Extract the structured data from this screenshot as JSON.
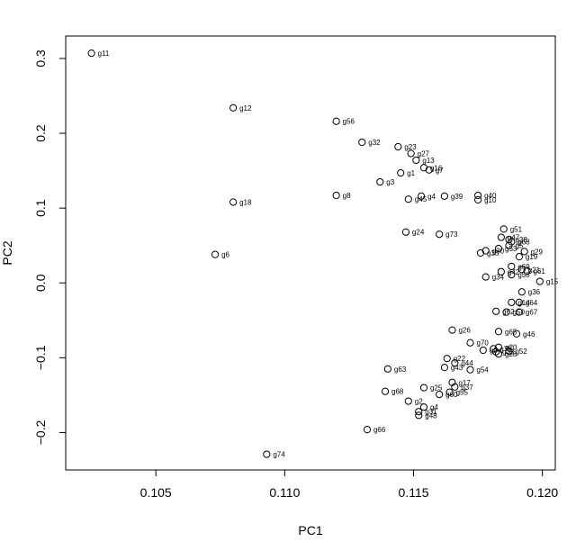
{
  "chart_data": {
    "type": "scatter",
    "xlabel": "PC1",
    "ylabel": "PC2",
    "xlim": [
      0.1015,
      0.1205
    ],
    "ylim": [
      -0.25,
      0.33
    ],
    "xticks": [
      0.105,
      0.11,
      0.115,
      0.12
    ],
    "xtick_labels": [
      "0.105",
      "0.110",
      "0.115",
      "0.120"
    ],
    "yticks": [
      -0.2,
      -0.1,
      0.0,
      0.1,
      0.2,
      0.3
    ],
    "ytick_labels": [
      "−0.2",
      "−0.1",
      "0.0",
      "0.1",
      "0.2",
      "0.3"
    ],
    "grid": false,
    "marker": "open-circle",
    "points": [
      {
        "label": "g11",
        "x": 0.1025,
        "y": 0.307
      },
      {
        "label": "g12",
        "x": 0.108,
        "y": 0.234
      },
      {
        "label": "g18",
        "x": 0.108,
        "y": 0.108
      },
      {
        "label": "g6",
        "x": 0.1073,
        "y": 0.038
      },
      {
        "label": "g74",
        "x": 0.1093,
        "y": -0.229
      },
      {
        "label": "g56",
        "x": 0.112,
        "y": 0.216
      },
      {
        "label": "g32",
        "x": 0.113,
        "y": 0.188
      },
      {
        "label": "g8",
        "x": 0.112,
        "y": 0.117
      },
      {
        "label": "g3",
        "x": 0.1137,
        "y": 0.135
      },
      {
        "label": "g23",
        "x": 0.1144,
        "y": 0.182
      },
      {
        "label": "g27",
        "x": 0.1149,
        "y": 0.173
      },
      {
        "label": "g13",
        "x": 0.1151,
        "y": 0.164
      },
      {
        "label": "g16",
        "x": 0.1154,
        "y": 0.154
      },
      {
        "label": "g7",
        "x": 0.1156,
        "y": 0.151
      },
      {
        "label": "g1",
        "x": 0.1145,
        "y": 0.147
      },
      {
        "label": "g45",
        "x": 0.1148,
        "y": 0.112
      },
      {
        "label": "g4",
        "x": 0.1153,
        "y": 0.116
      },
      {
        "label": "g39",
        "x": 0.1162,
        "y": 0.116
      },
      {
        "label": "g40",
        "x": 0.1175,
        "y": 0.117
      },
      {
        "label": "g10",
        "x": 0.1175,
        "y": 0.111
      },
      {
        "label": "g24",
        "x": 0.1147,
        "y": 0.068
      },
      {
        "label": "g73",
        "x": 0.116,
        "y": 0.065
      },
      {
        "label": "g51",
        "x": 0.1185,
        "y": 0.072
      },
      {
        "label": "g47",
        "x": 0.1184,
        "y": 0.061
      },
      {
        "label": "g38",
        "x": 0.1187,
        "y": 0.058
      },
      {
        "label": "g68",
        "x": 0.1188,
        "y": 0.055
      },
      {
        "label": "g5",
        "x": 0.1187,
        "y": 0.05
      },
      {
        "label": "g53",
        "x": 0.1183,
        "y": 0.046
      },
      {
        "label": "g35",
        "x": 0.1176,
        "y": 0.04
      },
      {
        "label": "g30",
        "x": 0.1178,
        "y": 0.043
      },
      {
        "label": "g29",
        "x": 0.1193,
        "y": 0.042
      },
      {
        "label": "g19",
        "x": 0.1191,
        "y": 0.035
      },
      {
        "label": "g69",
        "x": 0.1188,
        "y": 0.022
      },
      {
        "label": "g21",
        "x": 0.1192,
        "y": 0.018
      },
      {
        "label": "g42",
        "x": 0.1184,
        "y": 0.015
      },
      {
        "label": "g61",
        "x": 0.1194,
        "y": 0.016
      },
      {
        "label": "g34",
        "x": 0.1178,
        "y": 0.008
      },
      {
        "label": "g58",
        "x": 0.1188,
        "y": 0.011
      },
      {
        "label": "g15",
        "x": 0.1199,
        "y": 0.002
      },
      {
        "label": "g36",
        "x": 0.1192,
        "y": -0.012
      },
      {
        "label": "g14",
        "x": 0.1188,
        "y": -0.026
      },
      {
        "label": "g64",
        "x": 0.1191,
        "y": -0.026
      },
      {
        "label": "g62",
        "x": 0.1182,
        "y": -0.038
      },
      {
        "label": "g50",
        "x": 0.1186,
        "y": -0.039
      },
      {
        "label": "g67",
        "x": 0.1191,
        "y": -0.039
      },
      {
        "label": "g26",
        "x": 0.1165,
        "y": -0.063
      },
      {
        "label": "g65",
        "x": 0.1183,
        "y": -0.065
      },
      {
        "label": "g46",
        "x": 0.119,
        "y": -0.068
      },
      {
        "label": "g70",
        "x": 0.1172,
        "y": -0.08
      },
      {
        "label": "g20",
        "x": 0.1183,
        "y": -0.086
      },
      {
        "label": "g9",
        "x": 0.1177,
        "y": -0.09
      },
      {
        "label": "g75",
        "x": 0.1181,
        "y": -0.088
      },
      {
        "label": "g33",
        "x": 0.1182,
        "y": -0.092
      },
      {
        "label": "g52",
        "x": 0.1187,
        "y": -0.091
      },
      {
        "label": "g28",
        "x": 0.1183,
        "y": -0.095
      },
      {
        "label": "g22",
        "x": 0.1163,
        "y": -0.101
      },
      {
        "label": "g44",
        "x": 0.1166,
        "y": -0.107
      },
      {
        "label": "g43",
        "x": 0.1162,
        "y": -0.113
      },
      {
        "label": "g54",
        "x": 0.1172,
        "y": -0.116
      },
      {
        "label": "g63",
        "x": 0.114,
        "y": -0.115
      },
      {
        "label": "g17",
        "x": 0.1165,
        "y": -0.133
      },
      {
        "label": "g37",
        "x": 0.1166,
        "y": -0.139
      },
      {
        "label": "g25",
        "x": 0.1154,
        "y": -0.14
      },
      {
        "label": "g60",
        "x": 0.116,
        "y": -0.149
      },
      {
        "label": "g55",
        "x": 0.1164,
        "y": -0.146
      },
      {
        "label": "g68",
        "x": 0.1139,
        "y": -0.145
      },
      {
        "label": "g2",
        "x": 0.1148,
        "y": -0.158
      },
      {
        "label": "g4",
        "x": 0.1154,
        "y": -0.166
      },
      {
        "label": "g31",
        "x": 0.1152,
        "y": -0.172
      },
      {
        "label": "g48",
        "x": 0.1152,
        "y": -0.177
      },
      {
        "label": "g66",
        "x": 0.1132,
        "y": -0.196
      }
    ]
  }
}
